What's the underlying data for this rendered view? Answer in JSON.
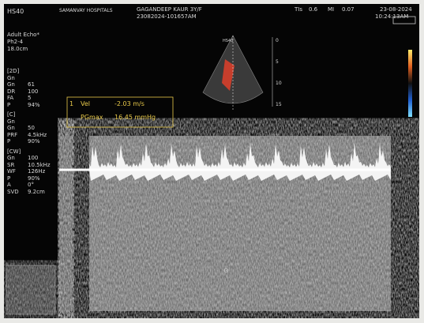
{
  "header": {
    "probe": "HS40",
    "hospital": "SAMANVAY HOSPITALS",
    "patient": "GAGANDEEP KAUR 3Y/F",
    "study_id": "23082024-101657AM",
    "tis_label": "TIs",
    "tis": "0.6",
    "mi_label": "MI",
    "mi": "0.07",
    "date": "23-08-2024",
    "time": "10:24:13AM"
  },
  "preset": {
    "name": "Adult Echo*",
    "probe": "Ph2-4",
    "depth": "18.0cm"
  },
  "sections": [
    {
      "title": "[2D]",
      "mode": "Gn",
      "params": [
        {
          "name": "Gn",
          "value": "61"
        },
        {
          "name": "DR",
          "value": "100"
        },
        {
          "name": "FA",
          "value": "5"
        },
        {
          "name": "P",
          "value": "94%"
        }
      ]
    },
    {
      "title": "[C]",
      "mode": "Gn",
      "params": [
        {
          "name": "Gn",
          "value": "50"
        },
        {
          "name": "PRF",
          "value": "4.5kHz"
        },
        {
          "name": "P",
          "value": "90%"
        }
      ]
    },
    {
      "title": "[CW]",
      "params": [
        {
          "name": "Gn",
          "value": "100"
        },
        {
          "name": "SR",
          "value": "10.5kHz"
        },
        {
          "name": "WF",
          "value": "126Hz"
        },
        {
          "name": "P",
          "value": "90%"
        },
        {
          "name": "A",
          "value": "0°"
        },
        {
          "name": "SVD",
          "value": "9.2cm"
        }
      ]
    }
  ],
  "measurement": {
    "index": "1",
    "label": "Vel",
    "value": "-2.03 m/s",
    "pg_label": "PGmax",
    "pg_value": "16.45 mmHg"
  },
  "thumbnail_label": "HS40",
  "depth_scale": [
    "0",
    "5",
    "10",
    "15"
  ]
}
